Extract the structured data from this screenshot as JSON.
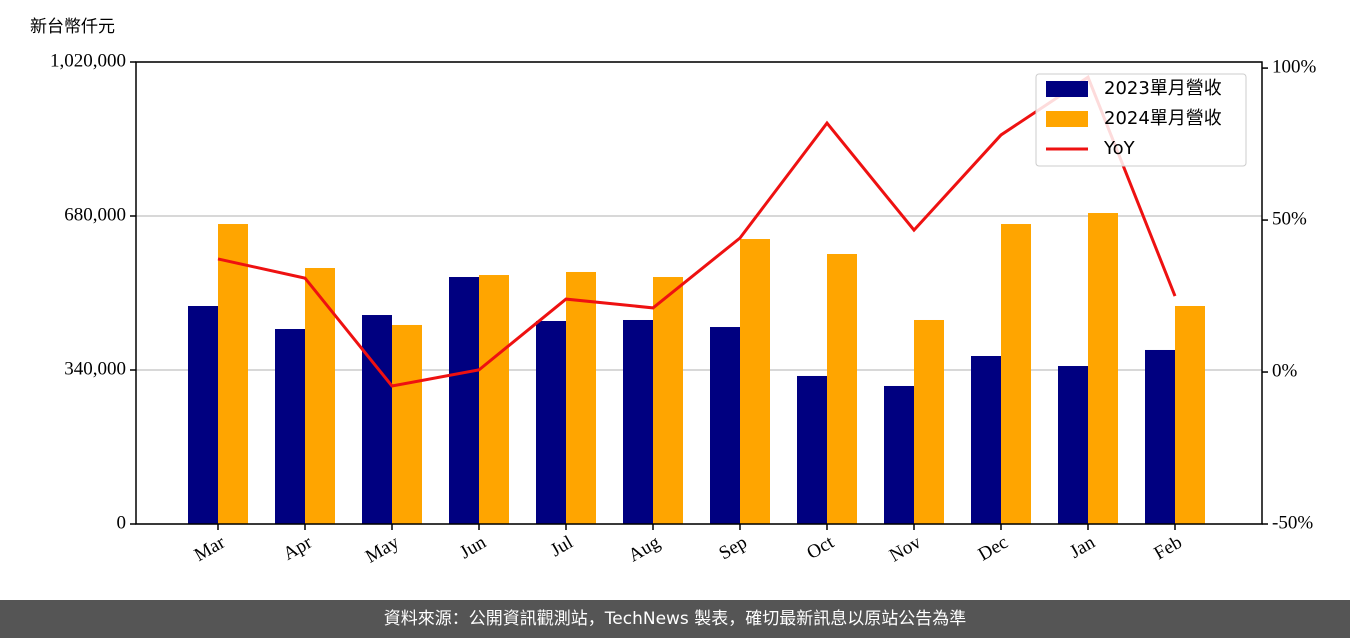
{
  "chart_data": {
    "type": "bar",
    "ylabel": "新台幣仟元",
    "categories": [
      "Mar",
      "Apr",
      "May",
      "Jun",
      "Jul",
      "Aug",
      "Sep",
      "Oct",
      "Nov",
      "Dec",
      "Jan",
      "Feb"
    ],
    "series": [
      {
        "name": "2023單月營收",
        "color": "#000080",
        "values": [
          481300,
          430500,
          461400,
          545300,
          448200,
          450400,
          434900,
          326800,
          304700,
          370900,
          348800,
          384200
        ]
      },
      {
        "name": "2024單月營收",
        "color": "#ffa500",
        "values": [
          662300,
          565200,
          439400,
          549700,
          556400,
          545300,
          629200,
          596100,
          450400,
          662300,
          686600,
          481300
        ]
      },
      {
        "name": "YoY",
        "type": "line",
        "axis": "y2",
        "color": "#ee1111",
        "values": [
          37.2,
          30.9,
          -4.6,
          0.7,
          24.0,
          21.1,
          44.1,
          81.9,
          46.7,
          78.0,
          97.0,
          25.0
        ]
      }
    ],
    "ylim": [
      0,
      1020000
    ],
    "yticks": [
      0,
      {
        "value": 340000,
        "label": "340,000"
      },
      {
        "value": 680000,
        "label": "680,000"
      },
      {
        "value": 1020000,
        "label": "1,020,000"
      }
    ],
    "y2lim": [
      -50,
      102
    ],
    "y2ticks": [
      {
        "value": -50,
        "label": "-50%"
      },
      {
        "value": 0,
        "label": "0%"
      },
      {
        "value": 50,
        "label": "50%"
      },
      {
        "value": 100,
        "label": "100%"
      }
    ],
    "grid": true,
    "legend": "upper right",
    "source": "資料來源：公開資訊觀測站，TechNews 製表，確切最新訊息以原站公告為準"
  }
}
